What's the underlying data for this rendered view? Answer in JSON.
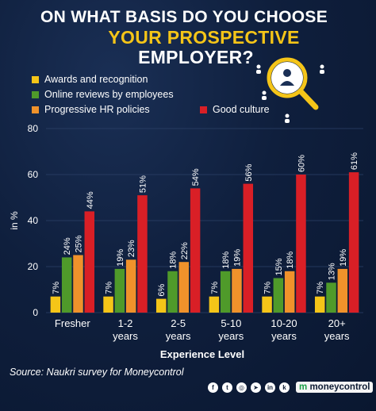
{
  "header": {
    "line1": "ON WHAT BASIS DO YOU CHOOSE",
    "line2": "YOUR PROSPECTIVE",
    "line3": "EMPLOYER?"
  },
  "colors": {
    "awards": "#f5c518",
    "online_reviews": "#4f9a2a",
    "hr_policies": "#f0922b",
    "good_culture": "#d91f26",
    "title_accent": "#f5c518",
    "background": "#0d1b33"
  },
  "chart_data": {
    "type": "bar",
    "xlabel": "Experience Level",
    "ylabel": "in %",
    "ylim": [
      0,
      80
    ],
    "yticks": [
      0,
      20,
      40,
      60,
      80
    ],
    "grid": true,
    "legend_position": "top-left",
    "categories": [
      [
        "Fresher"
      ],
      [
        "1-2",
        "years"
      ],
      [
        "2-5",
        "years"
      ],
      [
        "5-10",
        "years"
      ],
      [
        "10-20",
        "years"
      ],
      [
        "20+",
        "years"
      ]
    ],
    "series": [
      {
        "name": "Awards and recognition",
        "color": "#f5c518",
        "values": [
          7,
          7,
          6,
          7,
          7,
          7
        ]
      },
      {
        "name": "Online reviews by employees",
        "color": "#4f9a2a",
        "values": [
          24,
          19,
          18,
          18,
          15,
          13
        ]
      },
      {
        "name": "Progressive HR policies",
        "color": "#f0922b",
        "values": [
          25,
          23,
          22,
          19,
          18,
          19
        ]
      },
      {
        "name": "Good culture",
        "color": "#d91f26",
        "values": [
          44,
          51,
          54,
          56,
          60,
          61
        ]
      }
    ]
  },
  "footer": {
    "source": "Source: Naukri survey for Moneycontrol",
    "social_icons": [
      "facebook-icon",
      "twitter-icon",
      "instagram-icon",
      "telegram-icon",
      "linkedin-icon",
      "koo-icon"
    ],
    "social_glyphs": [
      "f",
      "t",
      "◎",
      "➤",
      "in",
      "k"
    ],
    "brand": "moneycontrol",
    "brand_mark": "m"
  }
}
